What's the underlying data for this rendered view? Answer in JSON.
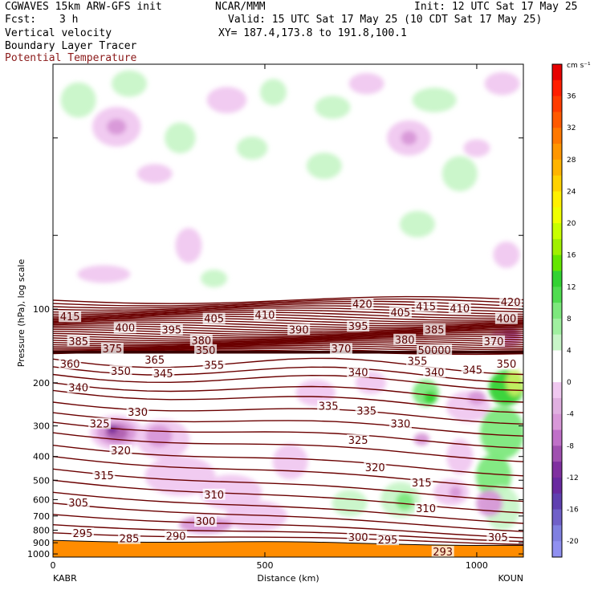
{
  "header": {
    "model": "CGWAVES 15km ARW-GFS init",
    "center": "NCAR/MMM",
    "init": "Init: 12 UTC Sat 17 May 25",
    "fcst_label": "Fcst:",
    "fcst_value": "3 h",
    "valid": "Valid: 15 UTC Sat 17 May 25 (10 CDT Sat 17 May 25)",
    "field1": "Vertical velocity",
    "field2": "Boundary Layer Tracer",
    "field3": "Potential Temperature",
    "xy": "XY= 187.4,173.8 to 191.8,100.1"
  },
  "colors": {
    "theta_contour": "#6b0000",
    "terrain": "#ff8c00",
    "light_green": "#c8f5c8",
    "mid_green": "#7de87d",
    "bright_green": "#32d232",
    "light_purple": "#f0c8f0",
    "mid_purple": "#d898d8",
    "dark_purple": "#b060b0",
    "deep_purple": "#7a2a9a"
  },
  "chart_data": {
    "type": "contour cross-section",
    "xlabel": "Distance (km)",
    "ylabel": "Pressure (hPa), log scale",
    "x_ticks": [
      "0",
      "500",
      "1000"
    ],
    "x_range": [
      0,
      1110
    ],
    "y_ticks": [
      "100",
      "200",
      "300",
      "400",
      "500",
      "600",
      "700",
      "800",
      "900",
      "1000"
    ],
    "y_range_hpa": [
      1030,
      10
    ],
    "y_scale": "log",
    "left_station": "KABR",
    "right_station": "KOUN",
    "colorbar": {
      "unit": "cm s⁻¹",
      "ticks": [
        "36",
        "32",
        "28",
        "24",
        "20",
        "16",
        "12",
        "8",
        "4",
        "0",
        "-4",
        "-8",
        "-12",
        "-16",
        "-20"
      ]
    },
    "theta_labels": [
      {
        "text": "415",
        "x": 40,
        "p": 108
      },
      {
        "text": "400",
        "x": 170,
        "p": 120
      },
      {
        "text": "395",
        "x": 280,
        "p": 122
      },
      {
        "text": "405",
        "x": 380,
        "p": 110
      },
      {
        "text": "410",
        "x": 500,
        "p": 106
      },
      {
        "text": "420",
        "x": 730,
        "p": 96
      },
      {
        "text": "405",
        "x": 820,
        "p": 104
      },
      {
        "text": "415",
        "x": 880,
        "p": 98
      },
      {
        "text": "410",
        "x": 960,
        "p": 100
      },
      {
        "text": "420",
        "x": 1080,
        "p": 94
      },
      {
        "text": "400",
        "x": 1070,
        "p": 110
      },
      {
        "text": "390",
        "x": 580,
        "p": 122
      },
      {
        "text": "395",
        "x": 720,
        "p": 118
      },
      {
        "text": "385",
        "x": 900,
        "p": 122
      },
      {
        "text": "385",
        "x": 60,
        "p": 136
      },
      {
        "text": "380",
        "x": 350,
        "p": 135
      },
      {
        "text": "380",
        "x": 830,
        "p": 134
      },
      {
        "text": "375",
        "x": 140,
        "p": 146
      },
      {
        "text": "350",
        "x": 360,
        "p": 148
      },
      {
        "text": "370",
        "x": 680,
        "p": 146
      },
      {
        "text": "370",
        "x": 1040,
        "p": 136
      },
      {
        "text": "50000",
        "x": 900,
        "p": 148
      },
      {
        "text": "365",
        "x": 240,
        "p": 162
      },
      {
        "text": "360",
        "x": 40,
        "p": 168
      },
      {
        "text": "355",
        "x": 380,
        "p": 170
      },
      {
        "text": "355",
        "x": 860,
        "p": 164
      },
      {
        "text": "350",
        "x": 1070,
        "p": 168
      },
      {
        "text": "350",
        "x": 160,
        "p": 180
      },
      {
        "text": "345",
        "x": 260,
        "p": 184
      },
      {
        "text": "340",
        "x": 720,
        "p": 182
      },
      {
        "text": "340",
        "x": 900,
        "p": 182
      },
      {
        "text": "345",
        "x": 990,
        "p": 178
      },
      {
        "text": "340",
        "x": 60,
        "p": 210
      },
      {
        "text": "335",
        "x": 650,
        "p": 250
      },
      {
        "text": "335",
        "x": 740,
        "p": 262
      },
      {
        "text": "330",
        "x": 200,
        "p": 265
      },
      {
        "text": "330",
        "x": 820,
        "p": 295
      },
      {
        "text": "325",
        "x": 110,
        "p": 295
      },
      {
        "text": "325",
        "x": 720,
        "p": 345
      },
      {
        "text": "320",
        "x": 160,
        "p": 380
      },
      {
        "text": "320",
        "x": 760,
        "p": 445
      },
      {
        "text": "315",
        "x": 120,
        "p": 480
      },
      {
        "text": "315",
        "x": 870,
        "p": 515
      },
      {
        "text": "310",
        "x": 380,
        "p": 575
      },
      {
        "text": "310",
        "x": 880,
        "p": 655
      },
      {
        "text": "305",
        "x": 60,
        "p": 620
      },
      {
        "text": "300",
        "x": 360,
        "p": 740
      },
      {
        "text": "300",
        "x": 720,
        "p": 858
      },
      {
        "text": "295",
        "x": 70,
        "p": 828
      },
      {
        "text": "295",
        "x": 790,
        "p": 880
      },
      {
        "text": "285",
        "x": 180,
        "p": 870
      },
      {
        "text": "290",
        "x": 290,
        "p": 850
      },
      {
        "text": "305",
        "x": 1050,
        "p": 860
      },
      {
        "text": "293",
        "x": 920,
        "p": 985
      }
    ]
  }
}
